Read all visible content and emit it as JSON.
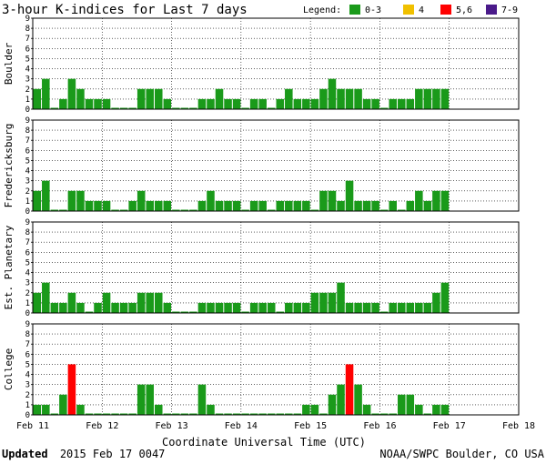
{
  "chart_data": {
    "type": "bar",
    "title": "3-hour K-indices for Last 7 days",
    "legend": {
      "title": "Legend:",
      "items": [
        {
          "label": "0-3",
          "color": "#1a9a1a"
        },
        {
          "label": "4",
          "color": "#f0c000"
        },
        {
          "label": "5,6",
          "color": "#ff0000"
        },
        {
          "label": "7-9",
          "color": "#4a1a8a"
        }
      ]
    },
    "xlabel": "Coordinate Universal Time (UTC)",
    "x_ticks": [
      "Feb 11",
      "Feb 12",
      "Feb 13",
      "Feb 14",
      "Feb 15",
      "Feb 16",
      "Feb 17",
      "Feb 18"
    ],
    "y_ticks": [
      "0",
      "1",
      "2",
      "3",
      "4",
      "5",
      "6",
      "7",
      "8",
      "9"
    ],
    "ylim": [
      0,
      9
    ],
    "intervals_per_day": 8,
    "grid": true,
    "series": [
      {
        "name": "Boulder",
        "values": [
          2,
          3,
          0,
          1,
          3,
          2,
          1,
          1,
          1,
          0,
          0,
          0,
          2,
          2,
          2,
          1,
          0,
          0,
          0,
          1,
          1,
          2,
          1,
          1,
          0,
          1,
          1,
          0,
          1,
          2,
          1,
          1,
          1,
          2,
          3,
          2,
          2,
          2,
          1,
          1,
          0,
          1,
          1,
          1,
          2,
          2,
          2,
          2
        ]
      },
      {
        "name": "Fredericksburg",
        "values": [
          2,
          3,
          0,
          0,
          2,
          2,
          1,
          1,
          1,
          0,
          0,
          1,
          2,
          1,
          1,
          1,
          0,
          0,
          0,
          1,
          2,
          1,
          1,
          1,
          0,
          1,
          1,
          0,
          1,
          1,
          1,
          1,
          0,
          2,
          2,
          1,
          3,
          1,
          1,
          1,
          0,
          1,
          0,
          1,
          2,
          1,
          2,
          2
        ]
      },
      {
        "name": "Est. Planetary",
        "values": [
          2,
          3,
          1,
          1,
          2,
          1,
          0,
          1,
          2,
          1,
          1,
          1,
          2,
          2,
          2,
          1,
          0,
          0,
          0,
          1,
          1,
          1,
          1,
          1,
          0,
          1,
          1,
          1,
          0,
          1,
          1,
          1,
          2,
          2,
          2,
          3,
          1,
          1,
          1,
          1,
          0,
          1,
          1,
          1,
          1,
          1,
          2,
          3
        ]
      },
      {
        "name": "College",
        "values": [
          1,
          1,
          0,
          2,
          5,
          1,
          0,
          0,
          0,
          0,
          0,
          0,
          3,
          3,
          1,
          0,
          0,
          0,
          0,
          3,
          1,
          0,
          0,
          0,
          0,
          0,
          0,
          0,
          0,
          0,
          0,
          1,
          1,
          0,
          2,
          3,
          5,
          3,
          1,
          0,
          0,
          0,
          2,
          2,
          1,
          0,
          1,
          1
        ]
      }
    ],
    "footer_left_bold": "Updated",
    "footer_left": "2015 Feb 17 0047",
    "footer_right": "NOAA/SWPC Boulder, CO USA"
  }
}
